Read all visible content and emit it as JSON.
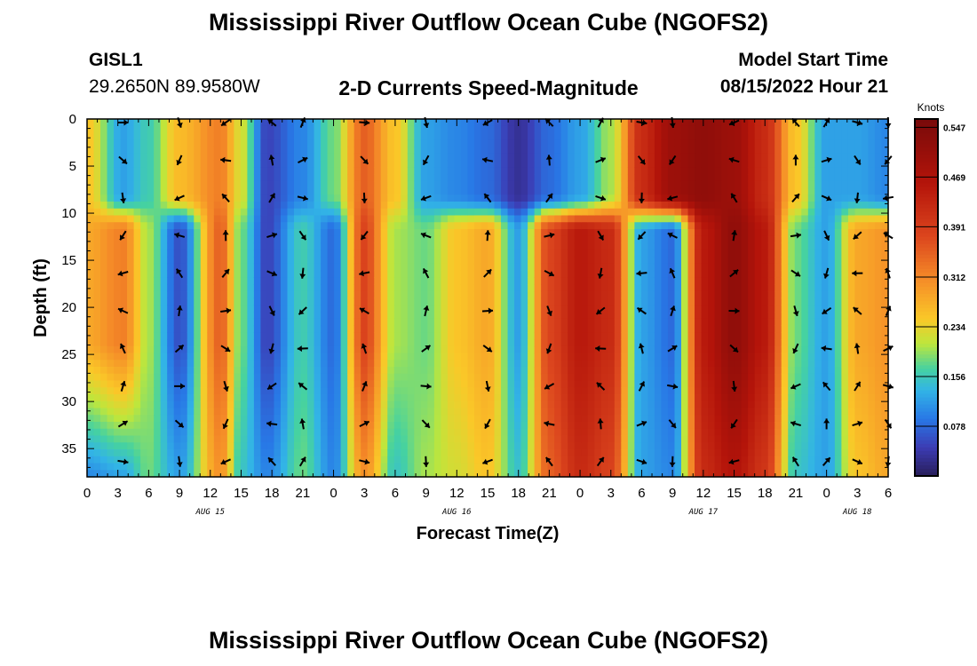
{
  "header": {
    "title": "Mississippi River Outflow Ocean Cube (NGOFS2)",
    "station_id": "GISL1",
    "coordinates": "29.2650N  89.9580W",
    "subtitle": "2-D Currents Speed-Magnitude",
    "model_start_label": "Model Start Time",
    "model_start_value": "08/15/2022 Hour 21"
  },
  "footer": {
    "title": "Mississippi River Outflow Ocean Cube (NGOFS2)"
  },
  "colorbar": {
    "unit_label": "Knots",
    "min": 0.0,
    "max": 0.56,
    "ticks": [
      "0.547",
      "0.469",
      "0.391",
      "0.312",
      "0.234",
      "0.156",
      "0.078"
    ],
    "tick_values": [
      0.547,
      0.469,
      0.391,
      0.312,
      0.234,
      0.156,
      0.078
    ]
  },
  "chart_data": {
    "type": "heatmap",
    "title": "2-D Currents Speed-Magnitude",
    "xlabel": "Forecast Time(Z)",
    "ylabel": "Depth (ft)",
    "xlim": [
      0,
      78
    ],
    "ylim": [
      38,
      0
    ],
    "x_tick_labels": [
      "0",
      "3",
      "6",
      "9",
      "12",
      "15",
      "18",
      "21",
      "0",
      "3",
      "6",
      "9",
      "12",
      "15",
      "18",
      "21",
      "0",
      "3",
      "6",
      "9",
      "12",
      "15",
      "18",
      "21",
      "0",
      "3",
      "6"
    ],
    "date_labels": [
      {
        "text": "AUG 15",
        "hour": 12
      },
      {
        "text": "AUG 16",
        "hour": 36
      },
      {
        "text": "AUG 17",
        "hour": 60
      },
      {
        "text": "AUG 18",
        "hour": 75
      }
    ],
    "y_ticks": [
      0,
      5,
      10,
      15,
      20,
      25,
      30,
      35
    ],
    "y_tick_labels": [
      "0",
      "5",
      "10",
      "15",
      "20",
      "25",
      "30",
      "35"
    ],
    "columns_hour": [
      0,
      3.5,
      6,
      9,
      13,
      15,
      17.5,
      21,
      24,
      27,
      30,
      33,
      36,
      39,
      42,
      45,
      48,
      51,
      54,
      57,
      60,
      63,
      66,
      69,
      72,
      75,
      78
    ],
    "column_profile_top": [
      0.25,
      0.12,
      0.16,
      0.26,
      0.32,
      0.22,
      0.05,
      0.1,
      0.18,
      0.35,
      0.25,
      0.12,
      0.1,
      0.08,
      0.03,
      0.08,
      0.12,
      0.2,
      0.42,
      0.5,
      0.52,
      0.5,
      0.42,
      0.25,
      0.12,
      0.12,
      0.1
    ],
    "column_profile_mid": [
      0.28,
      0.32,
      0.2,
      0.06,
      0.35,
      0.18,
      0.05,
      0.16,
      0.08,
      0.38,
      0.2,
      0.18,
      0.25,
      0.28,
      0.12,
      0.38,
      0.45,
      0.42,
      0.12,
      0.08,
      0.45,
      0.52,
      0.45,
      0.18,
      0.12,
      0.28,
      0.3
    ],
    "column_profile_bottom": [
      0.1,
      0.12,
      0.18,
      0.12,
      0.3,
      0.15,
      0.1,
      0.18,
      0.1,
      0.3,
      0.15,
      0.2,
      0.22,
      0.25,
      0.15,
      0.35,
      0.42,
      0.38,
      0.12,
      0.1,
      0.42,
      0.46,
      0.4,
      0.15,
      0.12,
      0.25,
      0.28
    ],
    "arrow_hours": [
      3.5,
      9,
      13.5,
      18,
      21,
      27,
      33,
      39,
      45,
      50,
      54,
      57,
      63,
      69,
      72,
      75,
      78
    ],
    "arrow_depths": [
      0,
      4,
      8,
      12,
      16,
      20,
      24,
      28,
      32,
      36
    ]
  }
}
